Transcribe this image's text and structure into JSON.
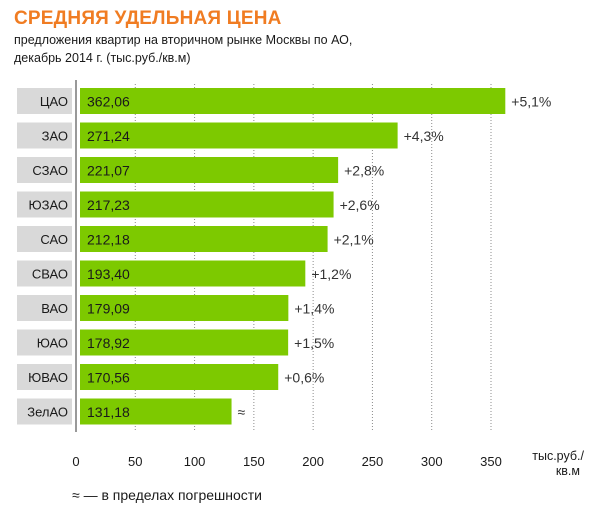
{
  "header": {
    "title": "СРЕДНЯЯ УДЕЛЬНАЯ ЦЕНА",
    "subtitle_line1": "предложения квартир на вторичном рынке Москвы по АО,",
    "subtitle_line2": "декабрь 2014 г. (тыс.руб./кв.м)"
  },
  "chart_data": {
    "type": "bar",
    "orientation": "horizontal",
    "categories": [
      "ЦАО",
      "ЗАО",
      "СЗАО",
      "ЮЗАО",
      "САО",
      "СВАО",
      "ВАО",
      "ЮАО",
      "ЮВАО",
      "ЗелАО"
    ],
    "values": [
      362.06,
      271.24,
      221.07,
      217.23,
      212.18,
      193.4,
      179.09,
      178.92,
      170.56,
      131.18
    ],
    "value_labels": [
      "362,06",
      "271,24",
      "221,07",
      "217,23",
      "212,18",
      "193,40",
      "179,09",
      "178,92",
      "170,56",
      "131,18"
    ],
    "change_labels": [
      "+5,1%",
      "+4,3%",
      "+2,8%",
      "+2,6%",
      "+2,1%",
      "+1,2%",
      "+1,4%",
      "+1,5%",
      "+0,6%",
      "≈"
    ],
    "xlim": [
      0,
      350
    ],
    "xticks": [
      0,
      50,
      100,
      150,
      200,
      250,
      300,
      350
    ],
    "xlabel_line1": "тыс.руб./",
    "xlabel_line2": "кв.м",
    "grid": true,
    "colors": {
      "bar": "#7dc900",
      "label_box": "#d9d9d9",
      "grid": "#8c8c8c",
      "title": "#f07c22"
    }
  },
  "footnote": "≈ — в пределах погрешности"
}
